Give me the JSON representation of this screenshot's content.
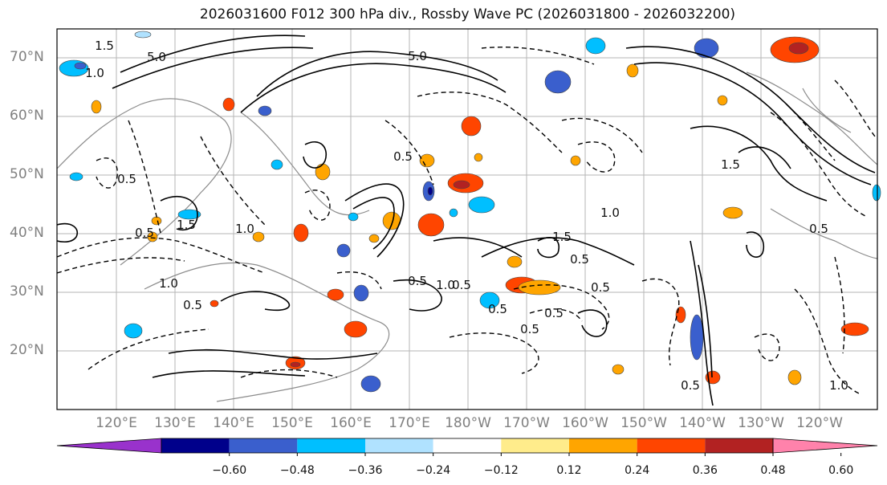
{
  "title": "2026031600 F012 300 hPa div., Rossby Wave PC (2026031800 - 2026032200)",
  "map": {
    "lat_labels": [
      "70°N",
      "60°N",
      "50°N",
      "40°N",
      "30°N",
      "20°N"
    ],
    "lon_labels": [
      "120°E",
      "130°E",
      "140°E",
      "150°E",
      "160°E",
      "170°E",
      "180°W",
      "170°W",
      "160°W",
      "150°W",
      "140°W",
      "130°W",
      "120°W"
    ],
    "contour_labels": [
      "1.5",
      "5.0",
      "1.0",
      "0.5",
      "0.5",
      "1.0",
      "1.5",
      "5.0",
      "0.5",
      "1.0",
      "0.5",
      "1.0",
      "0.5",
      "1.5",
      "0.5",
      "0.5",
      "1.0",
      "0.5",
      "0.5",
      "1.5",
      "0.5",
      "1.0",
      "0.5",
      "0.5",
      "0.5"
    ]
  },
  "colorbar": {
    "tick_labels": [
      "−0.60",
      "−0.48",
      "−0.36",
      "−0.24",
      "−0.12",
      "0.12",
      "0.24",
      "0.36",
      "0.48",
      "0.60"
    ],
    "colors": [
      "#9932cc",
      "#00008b",
      "#3a5fcd",
      "#00bfff",
      "#b0e2ff",
      "#ffffff",
      "#ffec8b",
      "#ffa500",
      "#ff4500",
      "#b22222",
      "#ff82ab"
    ]
  }
}
